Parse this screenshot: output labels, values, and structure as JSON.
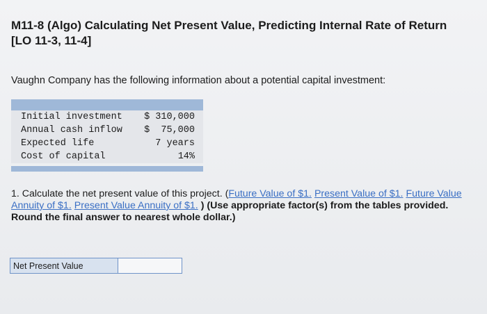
{
  "header": {
    "title": "M11-8 (Algo) Calculating Net Present Value, Predicting Internal Rate of Return [LO 11-3, 11-4]"
  },
  "intro": "Vaughn Company has the following information about a potential capital investment:",
  "table": {
    "rows": [
      [
        "Initial investment",
        "$ 310,000"
      ],
      [
        "Annual cash inflow",
        "$  75,000"
      ],
      [
        "Expected life",
        "7 years"
      ],
      [
        "Cost of capital",
        "14%"
      ]
    ]
  },
  "question": {
    "prefix": "1. Calculate the net present value of this project. (",
    "links": [
      "Future Value of $1.",
      "Present Value of $1.",
      "Future Value Annuity of $1.",
      "Present Value Annuity of $1."
    ],
    "suffix": ") (Use appropriate factor(s) from the tables provided. Round the final answer to nearest whole dollar.)"
  },
  "answer": {
    "label": "Net Present Value"
  }
}
